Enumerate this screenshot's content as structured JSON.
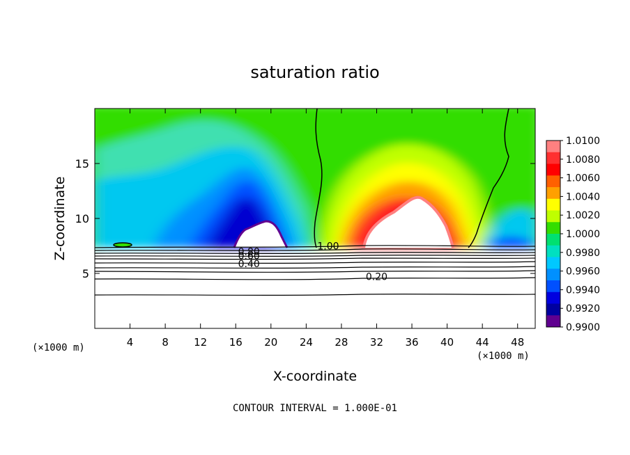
{
  "chart_data": {
    "type": "heatmap",
    "title": "saturation ratio",
    "xlabel": "X-coordinate",
    "ylabel": "Z-coordinate",
    "x_unit_left": "(×1000 m)",
    "x_unit_right": "(×1000 m)",
    "footer": "CONTOUR INTERVAL = 1.000E-01",
    "xlim": [
      0,
      50
    ],
    "ylim": [
      0,
      20
    ],
    "x_ticks": [
      4,
      8,
      12,
      16,
      20,
      24,
      28,
      32,
      36,
      40,
      44,
      48
    ],
    "y_ticks": [
      5,
      10,
      15
    ],
    "colorbar": {
      "min": 0.99,
      "max": 1.01,
      "labels": [
        "1.0100",
        "1.0080",
        "1.0060",
        "1.0040",
        "1.0020",
        "1.0000",
        "0.9980",
        "0.9960",
        "0.9940",
        "0.9920",
        "0.9900"
      ],
      "colors": [
        "#ff8080",
        "#ff3030",
        "#ff0000",
        "#ff6000",
        "#ffa000",
        "#ffff00",
        "#bfff00",
        "#33dd00",
        "#00e070",
        "#00e0c0",
        "#00c8ff",
        "#0090ff",
        "#0050ff",
        "#0000e0",
        "#0000a0",
        "#600090"
      ]
    },
    "contour_labels": [
      {
        "text": "1.00",
        "x": 26.5,
        "z": 7.5
      },
      {
        "text": "0.80",
        "x": 17.5,
        "z": 7.0
      },
      {
        "text": "0.60",
        "x": 17.5,
        "z": 6.6
      },
      {
        "text": "0.40",
        "x": 17.5,
        "z": 5.9
      },
      {
        "text": "0.20",
        "x": 32.0,
        "z": 4.7
      }
    ],
    "contour_levels_below_cloud": [
      7.4,
      7.2,
      7.0,
      6.8,
      6.5,
      6.2,
      5.7,
      5.3,
      4.6,
      3.1
    ],
    "features": {
      "cloud_base_z": 7.5,
      "supersaturated_region_x": [
        25,
        42
      ],
      "subsaturated_region_x": [
        0,
        25
      ],
      "moist_region_1": {
        "x": [
          29,
          42
        ],
        "z_top": 12.2
      },
      "moist_region_2": {
        "x": [
          13,
          23
        ],
        "z_top": 10.0
      }
    }
  }
}
